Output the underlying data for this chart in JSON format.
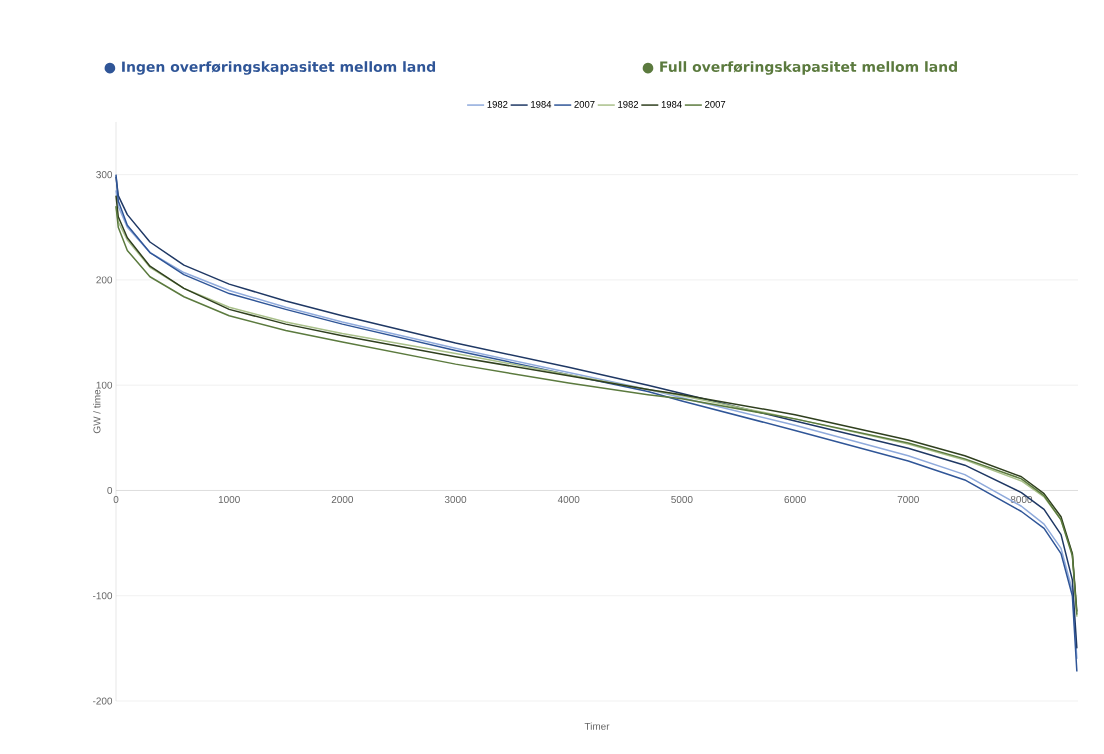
{
  "chart_data": {
    "type": "line",
    "annotations": [
      "● Ingen overføringskapasitet mellom land",
      "● Full overføringskapasitet mellom land"
    ],
    "xlabel": "Timer",
    "ylabel": "GW / time",
    "x": [
      0,
      20,
      100,
      300,
      600,
      1000,
      1500,
      2000,
      3000,
      4000,
      4700,
      5000,
      6000,
      7000,
      7500,
      8000,
      8200,
      8350,
      8450,
      8490
    ],
    "series": [
      {
        "name": "1982",
        "color": "#8faadc",
        "values": [
          285,
          270,
          250,
          226,
          207,
          190,
          174,
          160,
          135,
          112,
          96,
          88,
          62,
          33,
          15,
          -15,
          -32,
          -55,
          -95,
          -160
        ]
      },
      {
        "name": "1984",
        "color": "#1f3864",
        "values": [
          298,
          280,
          262,
          236,
          214,
          196,
          180,
          166,
          140,
          117,
          100,
          92,
          66,
          40,
          24,
          -2,
          -18,
          -42,
          -85,
          -150
        ]
      },
      {
        "name": "2007",
        "color": "#2f5597",
        "values": [
          300,
          275,
          252,
          226,
          205,
          187,
          172,
          158,
          133,
          110,
          94,
          85,
          57,
          28,
          10,
          -20,
          -36,
          -60,
          -100,
          -172
        ]
      },
      {
        "name": "1982",
        "color": "#a9c08a",
        "values": [
          270,
          255,
          238,
          212,
          192,
          174,
          160,
          149,
          130,
          110,
          96,
          90,
          68,
          44,
          29,
          9,
          -6,
          -28,
          -60,
          -120
        ]
      },
      {
        "name": "1984",
        "color": "#2f3f1e",
        "values": [
          280,
          260,
          240,
          213,
          192,
          172,
          158,
          147,
          127,
          109,
          96,
          91,
          72,
          48,
          33,
          13,
          -3,
          -25,
          -60,
          -115
        ]
      },
      {
        "name": "2007",
        "color": "#5b7a3e",
        "values": [
          270,
          250,
          228,
          203,
          184,
          166,
          152,
          141,
          120,
          102,
          91,
          87,
          68,
          45,
          30,
          11,
          -5,
          -28,
          -62,
          -118
        ]
      }
    ],
    "xlim": [
      0,
      8500
    ],
    "xticks": [
      0,
      1000,
      2000,
      3000,
      4000,
      5000,
      6000,
      7000,
      8000
    ],
    "ylim": [
      -200,
      350
    ],
    "yticks": [
      -200,
      -100,
      0,
      100,
      200,
      300
    ],
    "grid": "y",
    "legend": "top",
    "marker": "none"
  }
}
